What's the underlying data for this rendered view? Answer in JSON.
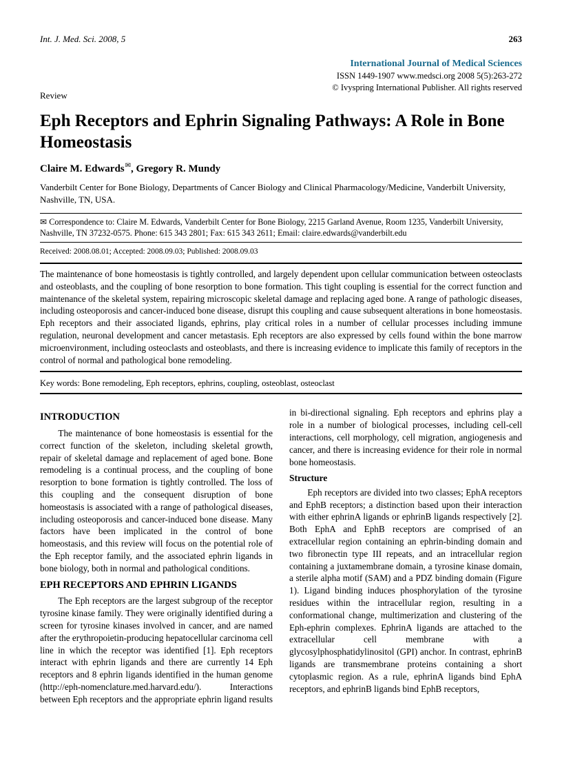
{
  "running_head": {
    "journal_abbrev": "Int. J. Med. Sci.",
    "year": "2008, 5",
    "page_number": "263"
  },
  "journal": {
    "name": "International Journal of Medical Sciences",
    "issn_line": "ISSN 1449-1907 www.medsci.org 2008 5(5):263-272",
    "copyright": "© Ivyspring International Publisher. All rights reserved"
  },
  "article_type": "Review",
  "title": "Eph Receptors and Ephrin Signaling Pathways: A Role in Bone Homeostasis",
  "authors": "Claire M. Edwards ✉, Gregory R. Mundy",
  "author1": "Claire M. Edwards",
  "author2": ", Gregory R. Mundy",
  "affiliation": "Vanderbilt Center for Bone Biology, Departments of Cancer Biology and Clinical Pharmacology/Medicine, Vanderbilt University, Nashville, TN, USA.",
  "correspondence": "✉ Correspondence to: Claire M. Edwards, Vanderbilt Center for Bone Biology, 2215 Garland Avenue, Room 1235, Vanderbilt University, Nashville, TN 37232-0575. Phone: 615 343 2801; Fax: 615 343 2611; Email: claire.edwards@vanderbilt.edu",
  "dates": "Received: 2008.08.01; Accepted: 2008.09.03; Published: 2008.09.03",
  "abstract": "The maintenance of bone homeostasis is tightly controlled, and largely dependent upon cellular communication between osteoclasts and osteoblasts, and the coupling of bone resorption to bone formation. This tight coupling is essential for the correct function and maintenance of the skeletal system, repairing microscopic skeletal damage and replacing aged bone. A range of pathologic diseases, including osteoporosis and cancer-induced bone disease, disrupt this coupling and cause subsequent alterations in bone homeostasis. Eph receptors and their associated ligands, ephrins, play critical roles in a number of cellular processes including immune regulation, neuronal development and cancer metastasis. Eph receptors are also expressed by cells found within the bone marrow microenvironment, including osteoclasts and osteoblasts, and there is increasing evidence to implicate this family of receptors in the control of normal and pathological bone remodeling.",
  "keywords_label": "Key words:",
  "keywords": " Bone remodeling, Eph receptors, ephrins, coupling, osteoblast, osteoclast",
  "sections": {
    "intro_heading": "INTRODUCTION",
    "intro_p1": "The maintenance of bone homeostasis is essential for the correct function of the skeleton, including skeletal growth, repair of skeletal damage and replacement of aged bone. Bone remodeling is a continual process, and the coupling of bone resorption to bone formation is tightly controlled. The loss of this coupling and the consequent disruption of bone homeostasis is associated with a range of pathological diseases, including osteoporosis and cancer-induced bone disease. Many factors have been implicated in the control of bone homeostasis, and this review will focus on the potential role of the Eph receptor family, and the associated ephrin ligands in bone biology, both in normal and pathological conditions.",
    "eph_heading": "EPH RECEPTORS AND EPHRIN LIGANDS",
    "eph_p1": "The Eph receptors are the largest subgroup of the receptor tyrosine kinase family. They were originally identified during a screen for tyrosine kinases involved in cancer, and are named after the erythropoietin-producing hepatocellular carcinoma cell line in which the receptor was identified [1]. Eph receptors interact with ephrin ligands and there are currently 14 Eph receptors and 8 ephrin ligands identified in the human genome (http://eph-nomenclature.med.harvard.edu/). Interactions between Eph receptors and the appropriate ephrin ligand results in bi-directional signaling. Eph receptors and ephrins play a role in a number of biological processes, including cell-cell interactions, cell morphology, cell migration, angiogenesis and cancer, and there is increasing evidence for their role in normal bone homeostasis.",
    "structure_heading": "Structure",
    "structure_p1": "Eph receptors are divided into two classes; EphA receptors and EphB receptors; a distinction based upon their interaction with either ephrinA ligands or ephrinB ligands respectively [2]. Both EphA and EphB receptors are comprised of an extracellular region containing an ephrin-binding domain and two fibronectin type III repeats, and an intracellular region containing a juxtamembrane domain, a tyrosine kinase domain, a sterile alpha motif (SAM) and a PDZ binding domain (Figure 1). Ligand binding induces phosphorylation of the tyrosine residues within the intracellular region, resulting in a conformational change, multimerization and clustering of the Eph-ephrin complexes. EphrinA ligands are attached to the extracellular cell membrane with a glycosylphosphatidylinositol (GPI) anchor. In contrast, ephrinB ligands are transmembrane proteins containing a short cytoplasmic region. As a rule, ephrinA ligands bind EphA receptors, and ephrinB ligands bind EphB receptors,"
  },
  "colors": {
    "journal_name": "#1a6b8e",
    "text": "#000000",
    "background": "#ffffff"
  },
  "typography": {
    "body_font": "Book Antiqua / Palatino",
    "body_size_pt": 10,
    "title_size_pt": 19,
    "h2_size_pt": 11
  }
}
